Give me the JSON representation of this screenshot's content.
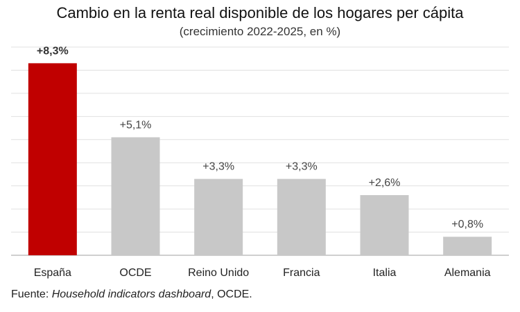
{
  "header": {
    "title": "Cambio en la renta real disponible de los hogares per cápita",
    "subtitle": "(crecimiento 2022-2025, en %)"
  },
  "footer": {
    "prefix": "Fuente: ",
    "source_name": "Household indicators dashboard",
    "suffix": ", OCDE."
  },
  "colors": {
    "highlight": "#c00000",
    "default": "#c8c8c8",
    "grid": "#e0e0e0",
    "axis": "#bfbfbf"
  },
  "chart_data": {
    "type": "bar",
    "categories": [
      "España",
      "OCDE",
      "Reino Unido",
      "Francia",
      "Italia",
      "Alemania"
    ],
    "values": [
      8.3,
      5.1,
      3.3,
      3.3,
      2.6,
      0.8
    ],
    "value_labels": [
      "+8,3%",
      "+5,1%",
      "+3,3%",
      "+3,3%",
      "+2,6%",
      "+0,8%"
    ],
    "highlight_index": 0,
    "title": "Cambio en la renta real disponible de los hogares per cápita",
    "subtitle": "(crecimiento 2022-2025, en %)",
    "xlabel": "",
    "ylabel": "",
    "ylim": [
      0,
      9
    ],
    "grid": true,
    "legend": "none"
  }
}
